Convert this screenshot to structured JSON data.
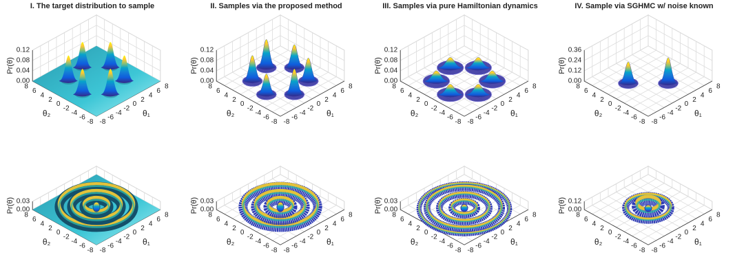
{
  "chart_data": [
    {
      "type": "surface3d",
      "title": "I. The target distribution to sample",
      "xlabel": "θ₁",
      "ylabel": "θ₂",
      "zlabel": "Pr(θ)",
      "xlim": [
        -8,
        8
      ],
      "ylim": [
        -8,
        8
      ],
      "zlim": [
        0,
        0.12
      ],
      "xticks": [
        -8,
        -6,
        -4,
        -2,
        0,
        2,
        4,
        6,
        8
      ],
      "yticks": [
        -8,
        -6,
        -4,
        -2,
        0,
        2,
        4,
        6,
        8
      ],
      "zticks": [
        {
          "value": 0,
          "label": "0.00"
        },
        0.04,
        0.08,
        0.12
      ],
      "peaks": {
        "x": [
          4.8,
          1.3,
          -3.5,
          -4.8,
          -1.3,
          3.5
        ],
        "y": [
          1.3,
          4.8,
          3.5,
          -1.3,
          -4.8,
          -3.5
        ],
        "z": [
          0.1,
          0.1,
          0.1,
          0.1,
          0.1,
          0.1
        ]
      }
    },
    {
      "type": "scatter3d",
      "title": "II. Samples via the proposed method",
      "xlabel": "θ₁",
      "ylabel": "θ₂",
      "zlabel": "Pr(θ)",
      "xlim": [
        -8,
        8
      ],
      "ylim": [
        -8,
        8
      ],
      "zlim": [
        0,
        0.12
      ],
      "xticks": [
        -8,
        -6,
        -4,
        -2,
        0,
        2,
        4,
        6,
        8
      ],
      "yticks": [
        -8,
        -6,
        -4,
        -2,
        0,
        2,
        4,
        6,
        8
      ],
      "zticks": [
        {
          "value": 0,
          "label": "0.00"
        },
        0.04,
        0.08,
        0.12
      ],
      "peaks": {
        "x": [
          4.8,
          1.3,
          -3.5,
          -4.8,
          -1.3,
          3.5
        ],
        "y": [
          1.3,
          4.8,
          3.5,
          -1.3,
          -4.8,
          -3.5
        ],
        "z": [
          0.09,
          0.11,
          0.1,
          0.08,
          0.1,
          0.09
        ]
      }
    },
    {
      "type": "scatter3d",
      "title": "III. Samples via pure Hamiltonian dynamics",
      "xlabel": "θ₁",
      "ylabel": "θ₂",
      "zlabel": "Pr(θ)",
      "xlim": [
        -8,
        8
      ],
      "ylim": [
        -8,
        8
      ],
      "zlim": [
        0,
        0.12
      ],
      "xticks": [
        -8,
        -6,
        -4,
        -2,
        0,
        2,
        4,
        6,
        8
      ],
      "yticks": [
        -8,
        -6,
        -4,
        -2,
        0,
        2,
        4,
        6,
        8
      ],
      "zticks": [
        {
          "value": 0,
          "label": "0.00"
        },
        0.04,
        0.08,
        0.12
      ],
      "peaks": {
        "x": [
          4.8,
          1.3,
          -3.5,
          -4.8,
          -1.3,
          3.5
        ],
        "y": [
          1.3,
          4.8,
          3.5,
          -1.3,
          -4.8,
          -3.5
        ],
        "z": [
          0.04,
          0.04,
          0.04,
          0.04,
          0.04,
          0.04
        ]
      }
    },
    {
      "type": "scatter3d",
      "title": "IV. Sample via SGHMC w/ noise known",
      "xlabel": "θ₁",
      "ylabel": "θ₂",
      "zlabel": "Pr(θ)",
      "xlim": [
        -8,
        8
      ],
      "ylim": [
        -8,
        8
      ],
      "zlim": [
        0,
        0.36
      ],
      "xticks": [
        -8,
        -6,
        -4,
        -2,
        0,
        2,
        4,
        6,
        8
      ],
      "yticks": [
        -8,
        -6,
        -4,
        -2,
        0,
        2,
        4,
        6,
        8
      ],
      "zticks": [
        {
          "value": 0,
          "label": "0.00"
        },
        0.12,
        0.24,
        0.36
      ],
      "peaks": {
        "x": [
          2,
          -3
        ],
        "y": [
          -3,
          2
        ],
        "z": [
          0.3,
          0.25
        ]
      }
    },
    {
      "type": "surface3d",
      "xlabel": "θ₁",
      "ylabel": "θ₂",
      "zlabel": "Pr(θ)",
      "xlim": [
        -8,
        8
      ],
      "ylim": [
        -8,
        8
      ],
      "zlim": [
        0,
        0.03
      ],
      "xticks": [
        -8,
        -6,
        -4,
        -2,
        0,
        2,
        4,
        6,
        8
      ],
      "yticks": [
        -8,
        -6,
        -4,
        -2,
        0,
        2,
        4,
        6,
        8
      ],
      "zticks": [
        {
          "value": 0,
          "label": "0.00"
        },
        0.03
      ],
      "rings": {
        "radius": [
          0,
          2.2,
          4.4,
          6.6
        ],
        "z": [
          0.02,
          0.02,
          0.02,
          0.02
        ]
      }
    },
    {
      "type": "scatter3d",
      "xlabel": "θ₁",
      "ylabel": "θ₂",
      "zlabel": "Pr(θ)",
      "xlim": [
        -8,
        8
      ],
      "ylim": [
        -8,
        8
      ],
      "zlim": [
        0,
        0.03
      ],
      "xticks": [
        -8,
        -6,
        -4,
        -2,
        0,
        2,
        4,
        6,
        8
      ],
      "yticks": [
        -8,
        -6,
        -4,
        -2,
        0,
        2,
        4,
        6,
        8
      ],
      "zticks": [
        {
          "value": 0,
          "label": "0.00"
        },
        0.03
      ],
      "rings": {
        "radius": [
          0,
          2.2,
          4.4,
          6.6
        ],
        "z": [
          0.02,
          0.02,
          0.02,
          0.02
        ]
      }
    },
    {
      "type": "scatter3d",
      "xlabel": "θ₁",
      "ylabel": "θ₂",
      "zlabel": "Pr(θ)",
      "xlim": [
        -8,
        8
      ],
      "ylim": [
        -8,
        8
      ],
      "zlim": [
        0,
        0.03
      ],
      "xticks": [
        -8,
        -6,
        -4,
        -2,
        0,
        2,
        4,
        6,
        8
      ],
      "yticks": [
        -8,
        -6,
        -4,
        -2,
        0,
        2,
        4,
        6,
        8
      ],
      "zticks": [
        {
          "value": 0,
          "label": "0.00"
        },
        0.03
      ],
      "rings": {
        "radius": [
          0,
          2.2,
          4.4,
          6.6,
          8
        ],
        "z": [
          0.012,
          0.012,
          0.012,
          0.012,
          0.006
        ]
      }
    },
    {
      "type": "scatter3d",
      "xlabel": "θ₁",
      "ylabel": "θ₂",
      "zlabel": "Pr(θ)",
      "xlim": [
        -8,
        8
      ],
      "ylim": [
        -8,
        8
      ],
      "zlim": [
        0,
        0.12
      ],
      "xticks": [
        -8,
        -6,
        -4,
        -2,
        0,
        2,
        4,
        6,
        8
      ],
      "yticks": [
        -8,
        -6,
        -4,
        -2,
        0,
        2,
        4,
        6,
        8
      ],
      "zticks": [
        {
          "value": 0,
          "label": "0.00"
        },
        0.12
      ],
      "rings": {
        "radius": [
          0,
          2,
          4
        ],
        "z": [
          0.04,
          0.1,
          0.05
        ]
      }
    }
  ]
}
